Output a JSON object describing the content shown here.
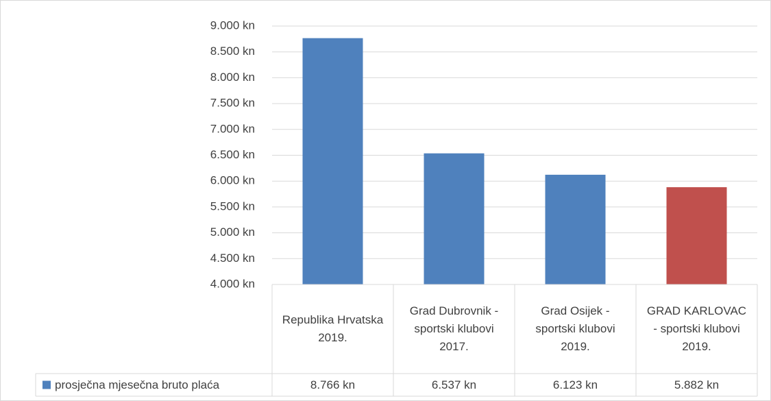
{
  "chart_data": {
    "type": "bar",
    "categories": [
      "Republika Hrvatska 2019.",
      "Grad Dubrovnik - sportski klubovi 2017.",
      "Grad Osijek - sportski klubovi 2019.",
      "GRAD KARLOVAC - sportski klubovi 2019."
    ],
    "series": [
      {
        "name": "prosječna mjesečna bruto plaća",
        "color": "#4f81bd",
        "values": [
          8766,
          6537,
          6123,
          5882
        ],
        "value_labels": [
          "8.766 kn",
          "6.537 kn",
          "6.123 kn",
          "5.882 kn"
        ],
        "point_colors": [
          "#4f81bd",
          "#4f81bd",
          "#4f81bd",
          "#c0504d"
        ]
      }
    ],
    "ylim": [
      4000,
      9000
    ],
    "yticks": [
      {
        "value": 4000,
        "label": "4.000 kn"
      },
      {
        "value": 4500,
        "label": "4.500 kn"
      },
      {
        "value": 5000,
        "label": "5.000 kn"
      },
      {
        "value": 5500,
        "label": "5.500 kn"
      },
      {
        "value": 6000,
        "label": "6.000 kn"
      },
      {
        "value": 6500,
        "label": "6.500 kn"
      },
      {
        "value": 7000,
        "label": "7.000 kn"
      },
      {
        "value": 7500,
        "label": "7.500 kn"
      },
      {
        "value": 8000,
        "label": "8.000 kn"
      },
      {
        "value": 8500,
        "label": "8.500 kn"
      },
      {
        "value": 9000,
        "label": "9.000 kn"
      }
    ],
    "grid": true,
    "data_table": true
  }
}
